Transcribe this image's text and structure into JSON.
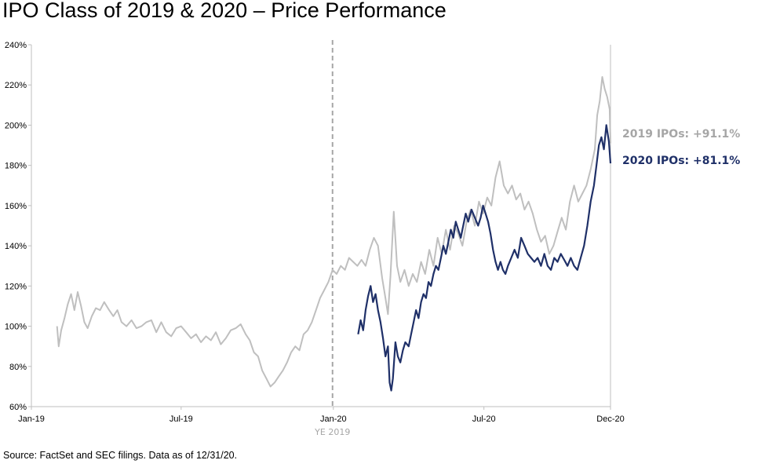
{
  "title": "IPO Class of 2019 & 2020 – Price Performance",
  "source": "Source: FactSet and SEC filings. Data as of 12/31/20.",
  "colors": {
    "ipo2019": "#bfbfbf",
    "ipo2020": "#1f3068",
    "label2019": "#a6a6a6",
    "label2020": "#1f3068",
    "axis": "#bfbfbf",
    "divider": "#a6a6a6"
  },
  "chart_data": {
    "type": "line",
    "title": "IPO Class of 2019 & 2020 – Price Performance",
    "xlabel": "",
    "ylabel": "",
    "x_range": [
      "2019-01-01",
      "2020-12-01"
    ],
    "y_range": [
      0.6,
      2.4
    ],
    "y_format": "percent",
    "xticks": [
      {
        "date": "2019-01-01",
        "label": "Jan-19"
      },
      {
        "date": "2019-07-01",
        "label": "Jul-19"
      },
      {
        "date": "2020-01-01",
        "label": "Jan-20"
      },
      {
        "date": "2020-07-01",
        "label": "Jul-20"
      },
      {
        "date": "2020-12-01",
        "label": "Dec-20"
      }
    ],
    "yticks": [
      0.6,
      0.8,
      1.0,
      1.2,
      1.4,
      1.6,
      1.8,
      2.0,
      2.2,
      2.4
    ],
    "ytick_labels": [
      "60%",
      "80%",
      "100%",
      "120%",
      "140%",
      "160%",
      "180%",
      "200%",
      "220%",
      "240%"
    ],
    "annotations": [
      {
        "type": "vline",
        "x": "2019-12-31",
        "style": "dashed",
        "label": "YE 2019"
      }
    ],
    "series": [
      {
        "key": "ipo2019",
        "end_label": "2019 IPOs: +91.1%",
        "points": [
          [
            "2019-02-01",
            1.0
          ],
          [
            "2019-02-03",
            0.9
          ],
          [
            "2019-02-06",
            0.98
          ],
          [
            "2019-02-10",
            1.04
          ],
          [
            "2019-02-14",
            1.11
          ],
          [
            "2019-02-18",
            1.16
          ],
          [
            "2019-02-22",
            1.08
          ],
          [
            "2019-02-26",
            1.17
          ],
          [
            "2019-03-02",
            1.1
          ],
          [
            "2019-03-06",
            1.02
          ],
          [
            "2019-03-10",
            0.99
          ],
          [
            "2019-03-15",
            1.05
          ],
          [
            "2019-03-20",
            1.09
          ],
          [
            "2019-03-25",
            1.08
          ],
          [
            "2019-03-30",
            1.12
          ],
          [
            "2019-04-05",
            1.08
          ],
          [
            "2019-04-10",
            1.05
          ],
          [
            "2019-04-15",
            1.08
          ],
          [
            "2019-04-20",
            1.02
          ],
          [
            "2019-04-26",
            1.0
          ],
          [
            "2019-05-02",
            1.03
          ],
          [
            "2019-05-08",
            0.99
          ],
          [
            "2019-05-14",
            1.0
          ],
          [
            "2019-05-20",
            1.02
          ],
          [
            "2019-05-26",
            1.03
          ],
          [
            "2019-06-01",
            0.97
          ],
          [
            "2019-06-07",
            1.02
          ],
          [
            "2019-06-13",
            0.97
          ],
          [
            "2019-06-19",
            0.95
          ],
          [
            "2019-06-25",
            0.99
          ],
          [
            "2019-07-01",
            1.0
          ],
          [
            "2019-07-07",
            0.97
          ],
          [
            "2019-07-13",
            0.94
          ],
          [
            "2019-07-19",
            0.96
          ],
          [
            "2019-07-25",
            0.92
          ],
          [
            "2019-07-31",
            0.95
          ],
          [
            "2019-08-06",
            0.93
          ],
          [
            "2019-08-12",
            0.97
          ],
          [
            "2019-08-18",
            0.91
          ],
          [
            "2019-08-24",
            0.94
          ],
          [
            "2019-08-30",
            0.98
          ],
          [
            "2019-09-05",
            0.99
          ],
          [
            "2019-09-11",
            1.01
          ],
          [
            "2019-09-17",
            0.96
          ],
          [
            "2019-09-22",
            0.93
          ],
          [
            "2019-09-27",
            0.87
          ],
          [
            "2019-10-02",
            0.85
          ],
          [
            "2019-10-07",
            0.78
          ],
          [
            "2019-10-12",
            0.74
          ],
          [
            "2019-10-17",
            0.7
          ],
          [
            "2019-10-22",
            0.72
          ],
          [
            "2019-10-27",
            0.75
          ],
          [
            "2019-11-01",
            0.78
          ],
          [
            "2019-11-06",
            0.82
          ],
          [
            "2019-11-11",
            0.87
          ],
          [
            "2019-11-16",
            0.9
          ],
          [
            "2019-11-21",
            0.88
          ],
          [
            "2019-11-26",
            0.96
          ],
          [
            "2019-12-01",
            0.98
          ],
          [
            "2019-12-06",
            1.02
          ],
          [
            "2019-12-11",
            1.08
          ],
          [
            "2019-12-16",
            1.14
          ],
          [
            "2019-12-21",
            1.18
          ],
          [
            "2019-12-26",
            1.22
          ],
          [
            "2019-12-31",
            1.28
          ],
          [
            "2020-01-05",
            1.26
          ],
          [
            "2020-01-10",
            1.3
          ],
          [
            "2020-01-15",
            1.28
          ],
          [
            "2020-01-20",
            1.34
          ],
          [
            "2020-01-25",
            1.32
          ],
          [
            "2020-01-30",
            1.3
          ],
          [
            "2020-02-04",
            1.33
          ],
          [
            "2020-02-09",
            1.3
          ],
          [
            "2020-02-14",
            1.38
          ],
          [
            "2020-02-19",
            1.44
          ],
          [
            "2020-02-24",
            1.4
          ],
          [
            "2020-02-29",
            1.24
          ],
          [
            "2020-03-04",
            1.14
          ],
          [
            "2020-03-07",
            1.06
          ],
          [
            "2020-03-10",
            1.25
          ],
          [
            "2020-03-14",
            1.57
          ],
          [
            "2020-03-18",
            1.3
          ],
          [
            "2020-03-22",
            1.22
          ],
          [
            "2020-03-27",
            1.28
          ],
          [
            "2020-04-01",
            1.2
          ],
          [
            "2020-04-06",
            1.26
          ],
          [
            "2020-04-11",
            1.22
          ],
          [
            "2020-04-16",
            1.32
          ],
          [
            "2020-04-21",
            1.26
          ],
          [
            "2020-04-26",
            1.38
          ],
          [
            "2020-05-01",
            1.3
          ],
          [
            "2020-05-06",
            1.44
          ],
          [
            "2020-05-11",
            1.36
          ],
          [
            "2020-05-16",
            1.48
          ],
          [
            "2020-05-21",
            1.38
          ],
          [
            "2020-05-26",
            1.5
          ],
          [
            "2020-05-31",
            1.46
          ],
          [
            "2020-06-05",
            1.4
          ],
          [
            "2020-06-10",
            1.52
          ],
          [
            "2020-06-15",
            1.58
          ],
          [
            "2020-06-20",
            1.5
          ],
          [
            "2020-06-25",
            1.62
          ],
          [
            "2020-06-30",
            1.56
          ],
          [
            "2020-07-05",
            1.64
          ],
          [
            "2020-07-10",
            1.6
          ],
          [
            "2020-07-15",
            1.74
          ],
          [
            "2020-07-20",
            1.82
          ],
          [
            "2020-07-25",
            1.7
          ],
          [
            "2020-07-30",
            1.66
          ],
          [
            "2020-08-04",
            1.7
          ],
          [
            "2020-08-09",
            1.63
          ],
          [
            "2020-08-14",
            1.66
          ],
          [
            "2020-08-19",
            1.58
          ],
          [
            "2020-08-24",
            1.62
          ],
          [
            "2020-08-29",
            1.56
          ],
          [
            "2020-09-03",
            1.48
          ],
          [
            "2020-09-08",
            1.42
          ],
          [
            "2020-09-13",
            1.45
          ],
          [
            "2020-09-18",
            1.36
          ],
          [
            "2020-09-23",
            1.4
          ],
          [
            "2020-09-28",
            1.47
          ],
          [
            "2020-10-03",
            1.54
          ],
          [
            "2020-10-08",
            1.48
          ],
          [
            "2020-10-13",
            1.62
          ],
          [
            "2020-10-18",
            1.7
          ],
          [
            "2020-10-23",
            1.62
          ],
          [
            "2020-10-28",
            1.66
          ],
          [
            "2020-11-02",
            1.7
          ],
          [
            "2020-11-07",
            1.78
          ],
          [
            "2020-11-12",
            1.88
          ],
          [
            "2020-11-15",
            2.05
          ],
          [
            "2020-11-18",
            2.12
          ],
          [
            "2020-11-21",
            2.24
          ],
          [
            "2020-11-24",
            2.18
          ],
          [
            "2020-11-27",
            2.14
          ],
          [
            "2020-11-30",
            2.08
          ],
          [
            "2020-12-01",
            1.91
          ]
        ]
      },
      {
        "key": "ipo2020",
        "end_label": "2020 IPOs: +81.1%",
        "points": [
          [
            "2020-01-31",
            0.96
          ],
          [
            "2020-02-03",
            1.03
          ],
          [
            "2020-02-06",
            0.98
          ],
          [
            "2020-02-09",
            1.08
          ],
          [
            "2020-02-12",
            1.15
          ],
          [
            "2020-02-15",
            1.2
          ],
          [
            "2020-02-18",
            1.12
          ],
          [
            "2020-02-21",
            1.16
          ],
          [
            "2020-02-24",
            1.08
          ],
          [
            "2020-02-27",
            1.02
          ],
          [
            "2020-03-01",
            0.94
          ],
          [
            "2020-03-04",
            0.85
          ],
          [
            "2020-03-07",
            0.9
          ],
          [
            "2020-03-09",
            0.72
          ],
          [
            "2020-03-11",
            0.68
          ],
          [
            "2020-03-13",
            0.74
          ],
          [
            "2020-03-16",
            0.92
          ],
          [
            "2020-03-19",
            0.85
          ],
          [
            "2020-03-22",
            0.82
          ],
          [
            "2020-03-25",
            0.88
          ],
          [
            "2020-03-28",
            0.92
          ],
          [
            "2020-04-01",
            0.9
          ],
          [
            "2020-04-04",
            0.96
          ],
          [
            "2020-04-07",
            1.02
          ],
          [
            "2020-04-10",
            1.08
          ],
          [
            "2020-04-13",
            1.04
          ],
          [
            "2020-04-16",
            1.12
          ],
          [
            "2020-04-19",
            1.16
          ],
          [
            "2020-04-22",
            1.14
          ],
          [
            "2020-04-25",
            1.22
          ],
          [
            "2020-04-28",
            1.2
          ],
          [
            "2020-05-01",
            1.26
          ],
          [
            "2020-05-04",
            1.3
          ],
          [
            "2020-05-07",
            1.28
          ],
          [
            "2020-05-10",
            1.34
          ],
          [
            "2020-05-13",
            1.4
          ],
          [
            "2020-05-16",
            1.36
          ],
          [
            "2020-05-19",
            1.42
          ],
          [
            "2020-05-22",
            1.48
          ],
          [
            "2020-05-25",
            1.44
          ],
          [
            "2020-05-28",
            1.52
          ],
          [
            "2020-05-31",
            1.48
          ],
          [
            "2020-06-03",
            1.44
          ],
          [
            "2020-06-06",
            1.5
          ],
          [
            "2020-06-09",
            1.56
          ],
          [
            "2020-06-12",
            1.52
          ],
          [
            "2020-06-16",
            1.58
          ],
          [
            "2020-06-20",
            1.54
          ],
          [
            "2020-06-24",
            1.5
          ],
          [
            "2020-06-27",
            1.54
          ],
          [
            "2020-06-30",
            1.6
          ],
          [
            "2020-07-03",
            1.56
          ],
          [
            "2020-07-06",
            1.52
          ],
          [
            "2020-07-09",
            1.46
          ],
          [
            "2020-07-12",
            1.38
          ],
          [
            "2020-07-15",
            1.32
          ],
          [
            "2020-07-18",
            1.28
          ],
          [
            "2020-07-21",
            1.32
          ],
          [
            "2020-07-24",
            1.28
          ],
          [
            "2020-07-27",
            1.26
          ],
          [
            "2020-07-30",
            1.3
          ],
          [
            "2020-08-03",
            1.34
          ],
          [
            "2020-08-07",
            1.38
          ],
          [
            "2020-08-11",
            1.34
          ],
          [
            "2020-08-15",
            1.44
          ],
          [
            "2020-08-19",
            1.4
          ],
          [
            "2020-08-23",
            1.36
          ],
          [
            "2020-08-27",
            1.34
          ],
          [
            "2020-08-31",
            1.32
          ],
          [
            "2020-09-04",
            1.34
          ],
          [
            "2020-09-08",
            1.3
          ],
          [
            "2020-09-12",
            1.36
          ],
          [
            "2020-09-16",
            1.3
          ],
          [
            "2020-09-20",
            1.28
          ],
          [
            "2020-09-24",
            1.34
          ],
          [
            "2020-09-28",
            1.32
          ],
          [
            "2020-10-02",
            1.36
          ],
          [
            "2020-10-06",
            1.33
          ],
          [
            "2020-10-10",
            1.3
          ],
          [
            "2020-10-14",
            1.34
          ],
          [
            "2020-10-18",
            1.3
          ],
          [
            "2020-10-22",
            1.28
          ],
          [
            "2020-10-26",
            1.34
          ],
          [
            "2020-10-30",
            1.4
          ],
          [
            "2020-11-03",
            1.5
          ],
          [
            "2020-11-07",
            1.62
          ],
          [
            "2020-11-11",
            1.7
          ],
          [
            "2020-11-14",
            1.8
          ],
          [
            "2020-11-17",
            1.9
          ],
          [
            "2020-11-20",
            1.94
          ],
          [
            "2020-11-23",
            1.88
          ],
          [
            "2020-11-26",
            2.0
          ],
          [
            "2020-11-29",
            1.92
          ],
          [
            "2020-12-01",
            1.81
          ]
        ]
      }
    ]
  }
}
